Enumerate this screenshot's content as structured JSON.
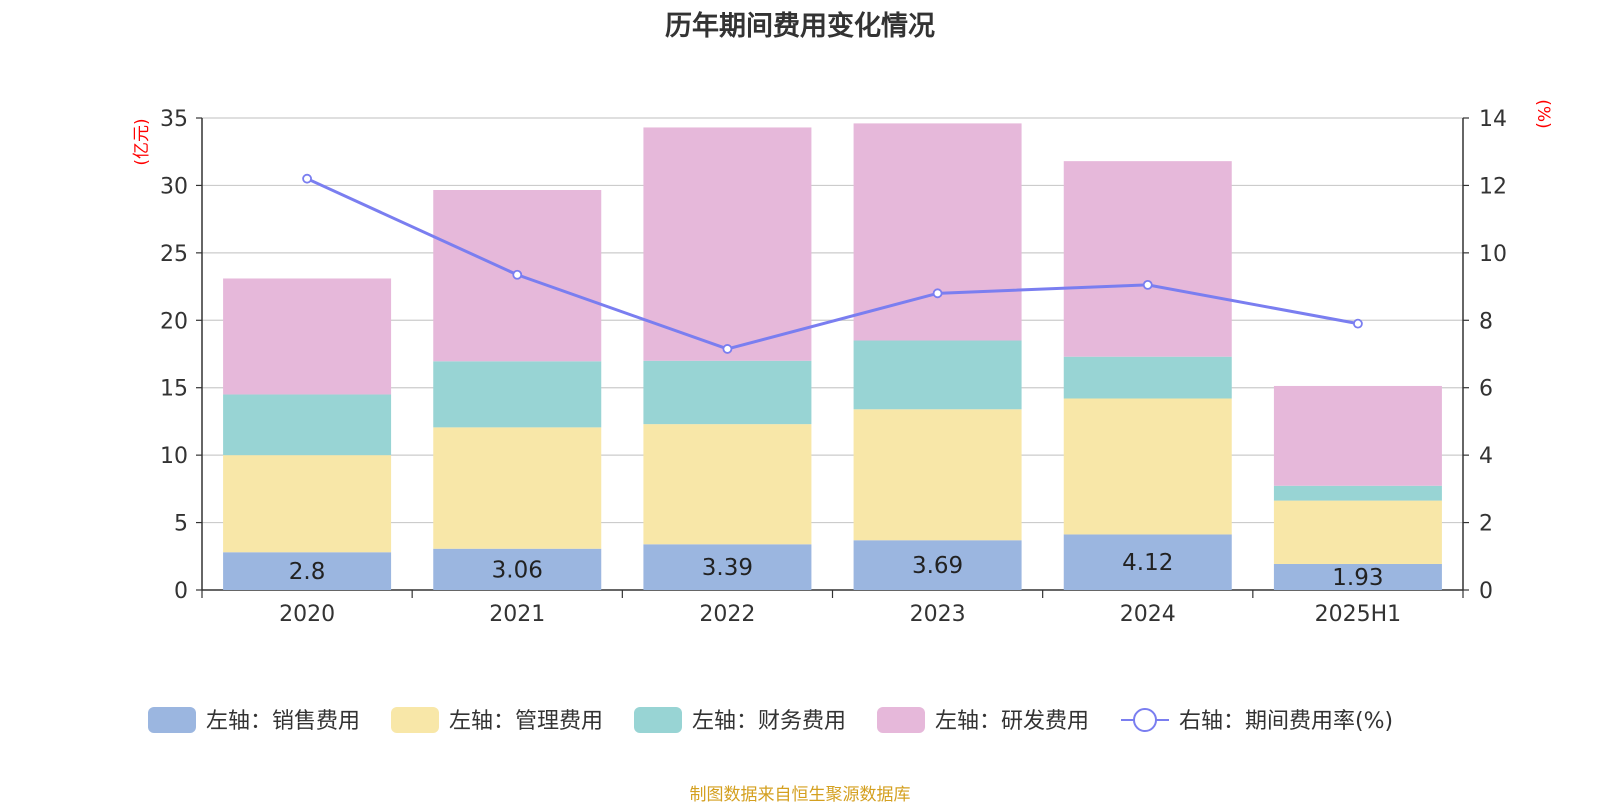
{
  "title": "历年期间费用变化情况",
  "source": "制图数据来自恒生聚源数据库",
  "colors": {
    "sales": "#9bb6e0",
    "admin": "#f8e7a8",
    "finance": "#98d4d4",
    "rd": "#e6b8da",
    "rate": "#7a7ef0",
    "axis_unit": "#ff0000",
    "grid": "#cccccc",
    "axis": "#333333"
  },
  "chart_data": {
    "type": "bar",
    "stacked": true,
    "categories": [
      "2020",
      "2021",
      "2022",
      "2023",
      "2024",
      "2025H1"
    ],
    "left_axis": {
      "unit": "(亿元)",
      "ylim": [
        0,
        35
      ],
      "ticks": [
        "0",
        "5",
        "10",
        "15",
        "20",
        "25",
        "30",
        "35"
      ]
    },
    "right_axis": {
      "unit": "(%)",
      "ylim": [
        0,
        14
      ],
      "ticks": [
        "0",
        "2",
        "4",
        "6",
        "8",
        "10",
        "12",
        "14"
      ]
    },
    "series": [
      {
        "name": "左轴：销售费用",
        "key": "sales",
        "values": [
          2.8,
          3.06,
          3.39,
          3.69,
          4.12,
          1.93
        ],
        "labels": [
          "2.8",
          "3.06",
          "3.39",
          "3.69",
          "4.12",
          "1.93"
        ]
      },
      {
        "name": "左轴：管理费用",
        "key": "admin",
        "values": [
          7.2,
          9.0,
          8.91,
          9.71,
          10.08,
          4.7
        ]
      },
      {
        "name": "左轴：财务费用",
        "key": "finance",
        "values": [
          4.5,
          4.9,
          4.7,
          5.1,
          3.1,
          1.1
        ]
      },
      {
        "name": "左轴：研发费用",
        "key": "rd",
        "values": [
          8.6,
          12.7,
          17.3,
          16.1,
          14.5,
          7.4
        ]
      }
    ],
    "line": {
      "name": "右轴：期间费用率(%)",
      "key": "rate",
      "values": [
        12.2,
        9.35,
        7.15,
        8.8,
        9.05,
        7.9
      ]
    },
    "grid": true,
    "legend_position": "bottom"
  }
}
